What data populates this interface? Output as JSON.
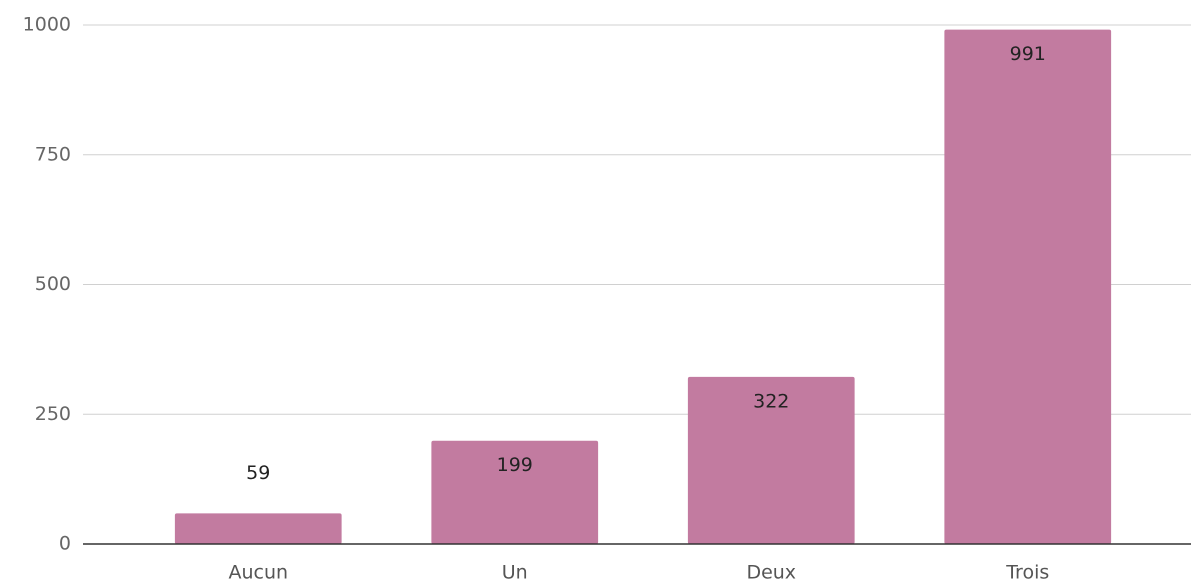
{
  "chart_data": {
    "type": "bar",
    "categories": [
      "Aucun",
      "Un",
      "Deux",
      "Trois"
    ],
    "values": [
      59,
      199,
      322,
      991
    ],
    "color": "#c27ba0",
    "ylim": [
      0,
      1000
    ],
    "yticks": [
      0,
      250,
      500,
      750,
      1000
    ],
    "grid": true
  }
}
